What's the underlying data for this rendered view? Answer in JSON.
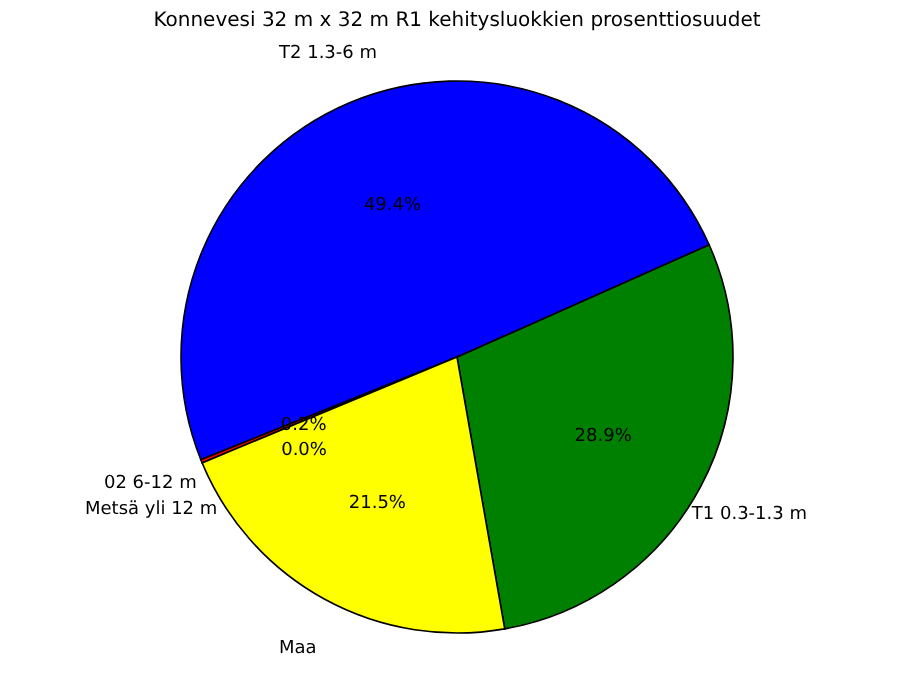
{
  "chart_data": {
    "type": "pie",
    "title": "Konnevesi 32 m x 32 m R1 kehitysluokkien prosenttiosuudet",
    "categories": [
      "T1  0.3-1.3 m",
      "T2  1.3-6 m",
      "02  6-12 m",
      "Metsä yli 12 m",
      "Maa"
    ],
    "values": [
      28.9,
      49.4,
      0.2,
      0.0,
      21.5
    ],
    "colors": [
      "#008000",
      "#0000ff",
      "#ff0000",
      "#00bfbf",
      "#ffff00"
    ],
    "value_labels": [
      "28.9%",
      "49.4%",
      "0.2%",
      "0.0%",
      "21.5%"
    ],
    "legend": false
  }
}
